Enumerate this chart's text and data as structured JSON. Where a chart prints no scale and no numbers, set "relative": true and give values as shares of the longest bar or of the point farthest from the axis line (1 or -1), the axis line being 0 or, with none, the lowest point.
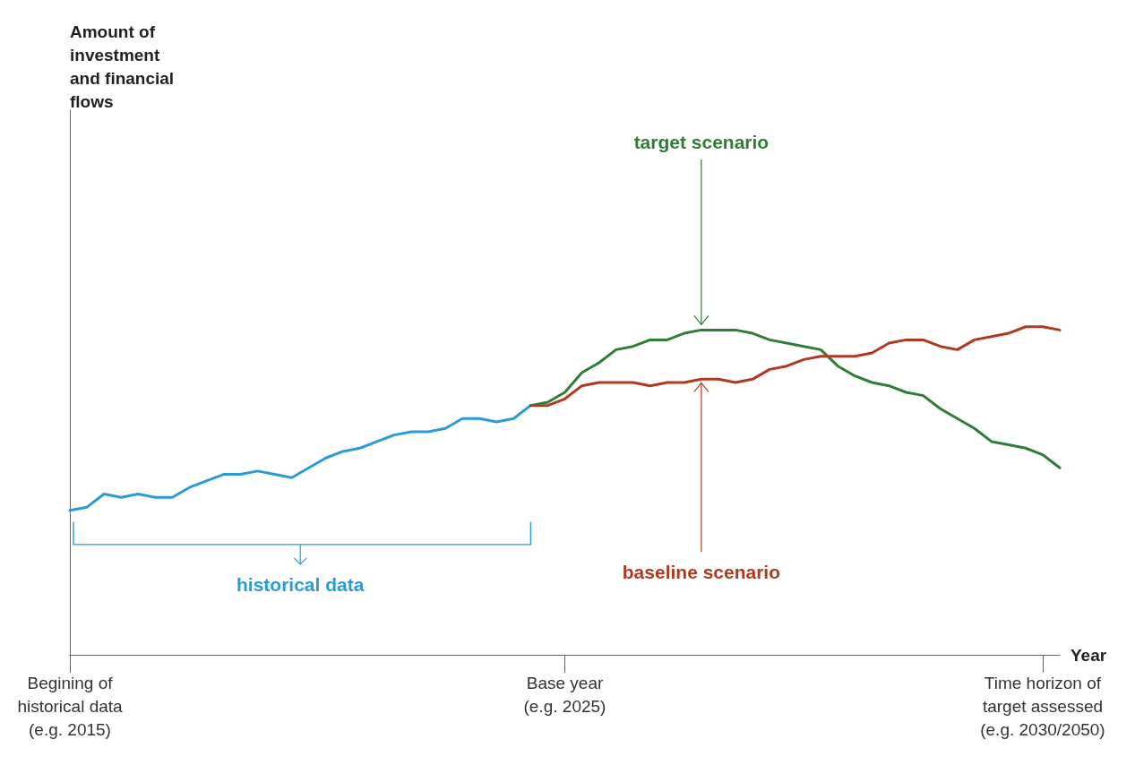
{
  "chart_data": {
    "type": "line",
    "relative": true,
    "marker": "none",
    "xlabel": "Year",
    "annotations": [
      "Amount of\ninvestment\nand financial\nflows"
    ],
    "categories": [
      "Begining of\nhistorical data\n(e.g. 2015)",
      null,
      null,
      null,
      null,
      null,
      null,
      null,
      null,
      null,
      null,
      null,
      null,
      null,
      null,
      null,
      null,
      null,
      null,
      null,
      null,
      null,
      null,
      null,
      null,
      null,
      null,
      null,
      null,
      "Base year\n(e.g. 2025)",
      null,
      null,
      null,
      null,
      null,
      null,
      null,
      null,
      null,
      null,
      null,
      null,
      null,
      null,
      null,
      null,
      null,
      null,
      null,
      null,
      null,
      null,
      null,
      null,
      null,
      null,
      null,
      "Time horizon of\ntarget assessed\n(e.g. 2030/2050)",
      null
    ],
    "series": [
      {
        "name": "historical data",
        "color": "#2b9bd8",
        "values": [
          0.44,
          0.45,
          0.49,
          0.48,
          0.49,
          0.48,
          0.48,
          0.51,
          0.53,
          0.55,
          0.55,
          0.56,
          0.55,
          0.54,
          0.57,
          0.6,
          0.62,
          0.63,
          0.65,
          0.67,
          0.68,
          0.68,
          0.69,
          0.72,
          0.72,
          0.71,
          0.72,
          0.76,
          null,
          null,
          null,
          null,
          null,
          null,
          null,
          null,
          null,
          null,
          null,
          null,
          null,
          null,
          null,
          null,
          null,
          null,
          null,
          null,
          null,
          null,
          null,
          null,
          null,
          null,
          null,
          null,
          null,
          null,
          null
        ]
      },
      {
        "name": "target scenario",
        "color": "#2f7d36",
        "values": [
          null,
          null,
          null,
          null,
          null,
          null,
          null,
          null,
          null,
          null,
          null,
          null,
          null,
          null,
          null,
          null,
          null,
          null,
          null,
          null,
          null,
          null,
          null,
          null,
          null,
          null,
          null,
          0.76,
          0.77,
          0.8,
          0.86,
          0.89,
          0.93,
          0.94,
          0.96,
          0.96,
          0.98,
          0.99,
          0.99,
          0.99,
          0.98,
          0.96,
          0.95,
          0.94,
          0.93,
          0.88,
          0.85,
          0.83,
          0.82,
          0.8,
          0.79,
          0.75,
          0.72,
          0.69,
          0.65,
          0.64,
          0.63,
          0.61,
          0.57
        ]
      },
      {
        "name": "baseline scenario",
        "color": "#b03a1f",
        "values": [
          null,
          null,
          null,
          null,
          null,
          null,
          null,
          null,
          null,
          null,
          null,
          null,
          null,
          null,
          null,
          null,
          null,
          null,
          null,
          null,
          null,
          null,
          null,
          null,
          null,
          null,
          null,
          0.76,
          0.76,
          0.78,
          0.82,
          0.83,
          0.83,
          0.83,
          0.82,
          0.83,
          0.83,
          0.84,
          0.84,
          0.83,
          0.84,
          0.87,
          0.88,
          0.9,
          0.91,
          0.91,
          0.91,
          0.92,
          0.95,
          0.96,
          0.96,
          0.94,
          0.93,
          0.96,
          0.97,
          0.98,
          1,
          1,
          0.99
        ]
      }
    ]
  }
}
